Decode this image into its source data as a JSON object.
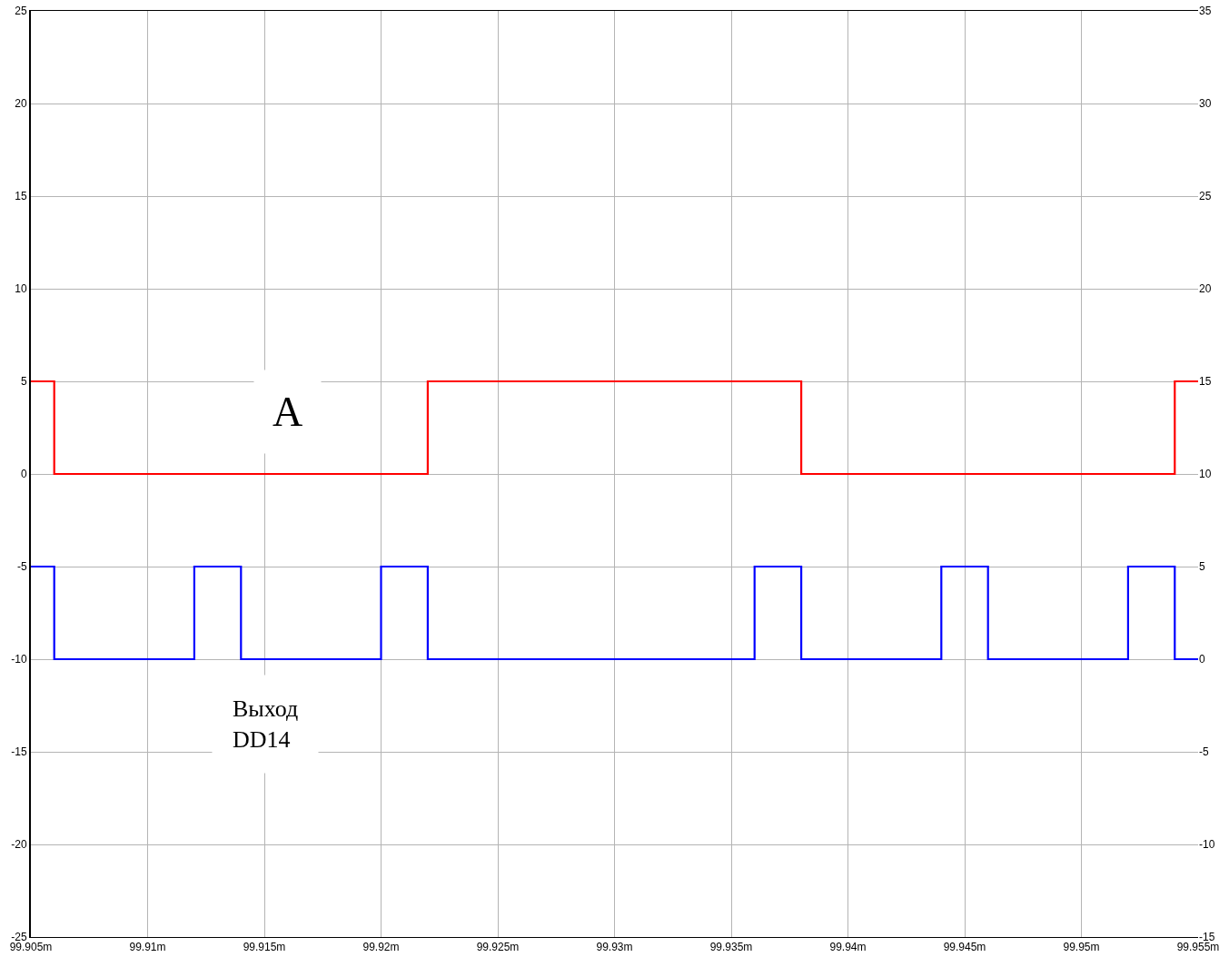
{
  "chart_data": {
    "type": "step",
    "xlim": [
      99.905,
      99.955
    ],
    "xticks": [
      {
        "value": 99.905,
        "label": "99.905m"
      },
      {
        "value": 99.91,
        "label": "99.91m"
      },
      {
        "value": 99.915,
        "label": "99.915m"
      },
      {
        "value": 99.92,
        "label": "99.92m"
      },
      {
        "value": 99.925,
        "label": "99.925m"
      },
      {
        "value": 99.93,
        "label": "99.93m"
      },
      {
        "value": 99.935,
        "label": "99.935m"
      },
      {
        "value": 99.94,
        "label": "99.94m"
      },
      {
        "value": 99.945,
        "label": "99.945m"
      },
      {
        "value": 99.95,
        "label": "99.95m"
      },
      {
        "value": 99.955,
        "label": "99.955m"
      }
    ],
    "ylim": [
      -25,
      25
    ],
    "yticks": [
      -25,
      -20,
      -15,
      -10,
      -5,
      0,
      5,
      10,
      15,
      20,
      25
    ],
    "y2lim": [
      -15,
      35
    ],
    "y2ticks": [
      -15,
      -10,
      -5,
      0,
      5,
      10,
      15,
      20,
      25,
      30,
      35
    ],
    "grid": true,
    "legend": false,
    "series": [
      {
        "name": "A",
        "color": "#ff0000",
        "x": [
          99.905,
          99.906,
          99.922,
          99.938,
          99.954,
          99.955
        ],
        "values": [
          5,
          0,
          5,
          0,
          5,
          5
        ]
      },
      {
        "name": "Выход\nDD14",
        "color": "#0000ff",
        "axis": "y2",
        "x": [
          99.905,
          99.906,
          99.912,
          99.914,
          99.92,
          99.922,
          99.936,
          99.938,
          99.944,
          99.946,
          99.952,
          99.954,
          99.955
        ],
        "values": [
          5,
          0,
          5,
          0,
          5,
          0,
          5,
          0,
          5,
          0,
          5,
          0,
          0
        ]
      }
    ]
  }
}
